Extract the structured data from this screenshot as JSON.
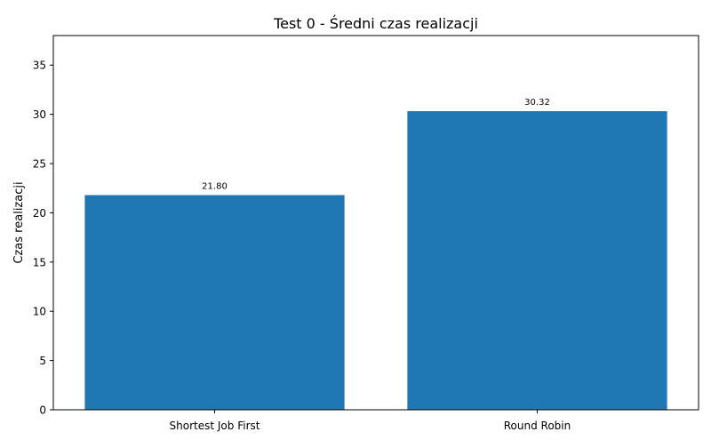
{
  "chart_data": {
    "type": "bar",
    "title": "Test 0 - Średni czas realizacji",
    "xlabel": "",
    "ylabel": "Czas realizacji",
    "categories": [
      "Shortest Job First",
      "Round Robin"
    ],
    "values": [
      21.8,
      30.32
    ],
    "data_labels": [
      "21.80",
      "30.32"
    ],
    "ylim": [
      0,
      38
    ],
    "yticks": [
      0,
      5,
      10,
      15,
      20,
      25,
      30,
      35
    ],
    "grid": false,
    "legend": "none",
    "bar_color": "#1f77b4"
  }
}
